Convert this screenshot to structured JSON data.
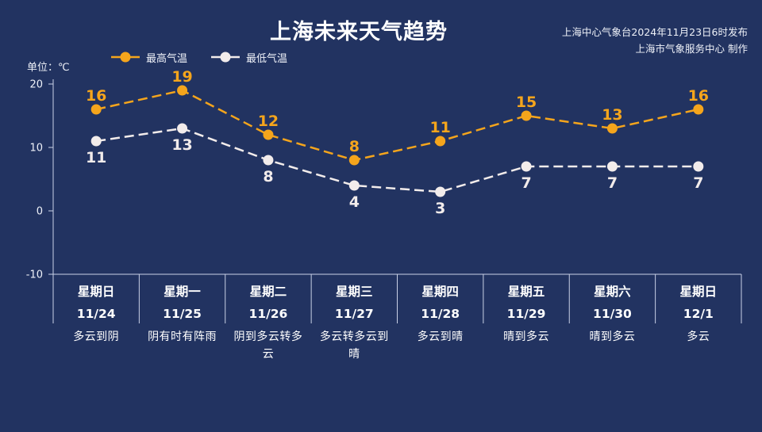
{
  "header": {
    "title": "上海未来天气趋势",
    "source_line1": "上海中心气象台2024年11月23日6时发布",
    "source_line2": "上海市气象服务中心 制作"
  },
  "colors": {
    "background": "#223361",
    "high_series": "#F5A51C",
    "low_series": "#F2ECEB",
    "axis": "#C9D1E6"
  },
  "chart_data": {
    "type": "line",
    "unit_label": "单位：℃",
    "ylim": [
      -10,
      20
    ],
    "yticks": [
      20,
      10,
      0,
      -10
    ],
    "grid": false,
    "legend_position": "top-left",
    "categories": [
      "11/24",
      "11/25",
      "11/26",
      "11/27",
      "11/28",
      "11/29",
      "11/30",
      "12/1"
    ],
    "weekdays": [
      "星期日",
      "星期一",
      "星期二",
      "星期三",
      "星期四",
      "星期五",
      "星期六",
      "星期日"
    ],
    "weather": [
      "多云到阴",
      "阴有时有阵雨",
      "阴到多云转多云",
      "多云转多云到晴",
      "多云到晴",
      "晴到多云",
      "晴到多云",
      "多云"
    ],
    "series": [
      {
        "name": "最高气温",
        "values": [
          16,
          19,
          12,
          8,
          11,
          15,
          13,
          16
        ],
        "color": "#F5A51C"
      },
      {
        "name": "最低气温",
        "values": [
          11,
          13,
          8,
          4,
          3,
          7,
          7,
          7
        ],
        "color": "#F2ECEB"
      }
    ]
  }
}
